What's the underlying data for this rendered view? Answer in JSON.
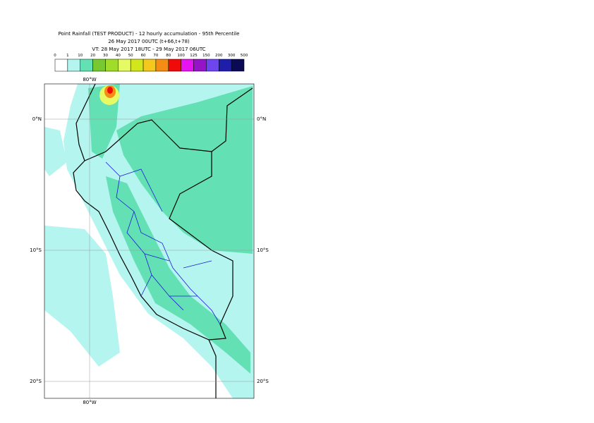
{
  "header": {
    "title": "Point Rainfall (TEST PRODUCT) - 12 hourly accumulation - 95th Percentile",
    "run": "26 May 2017 00UTC (t+66,t+78)",
    "valid": "VT: 28 May 2017 18UTC - 29 May 2017 06UTC"
  },
  "legend": {
    "labels": [
      "0",
      "1",
      "10",
      "20",
      "30",
      "40",
      "50",
      "60",
      "70",
      "80",
      "100",
      "125",
      "150",
      "200",
      "300",
      "500"
    ],
    "colors": [
      "#ffffff",
      "#b4f5f0",
      "#64e1b4",
      "#78c832",
      "#a0dc28",
      "#e6fa64",
      "#d2e61e",
      "#f5c81e",
      "#f58c14",
      "#f00a0a",
      "#e614f0",
      "#9614c8",
      "#6e46f0",
      "#1e1eaa",
      "#0a0a55"
    ]
  },
  "map": {
    "longitude_labels": [
      "80°W"
    ],
    "latitude_labels": [
      "0°N",
      "10°S",
      "20°S"
    ]
  }
}
